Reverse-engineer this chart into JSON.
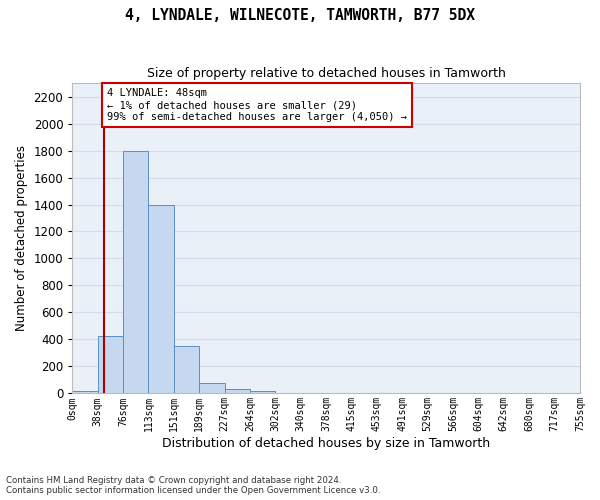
{
  "title": "4, LYNDALE, WILNECOTE, TAMWORTH, B77 5DX",
  "subtitle": "Size of property relative to detached houses in Tamworth",
  "xlabel": "Distribution of detached houses by size in Tamworth",
  "ylabel": "Number of detached properties",
  "bar_color": "#c5d8f0",
  "bar_edge_color": "#5a8fc2",
  "background_color": "#eaf0f8",
  "grid_color": "#d0dce8",
  "bins": [
    "0sqm",
    "38sqm",
    "76sqm",
    "113sqm",
    "151sqm",
    "189sqm",
    "227sqm",
    "264sqm",
    "302sqm",
    "340sqm",
    "378sqm",
    "415sqm",
    "453sqm",
    "491sqm",
    "529sqm",
    "566sqm",
    "604sqm",
    "642sqm",
    "680sqm",
    "717sqm",
    "755sqm"
  ],
  "bar_heights": [
    20,
    425,
    1800,
    1400,
    350,
    80,
    35,
    20,
    0,
    0,
    0,
    0,
    0,
    0,
    0,
    0,
    0,
    0,
    0,
    0
  ],
  "ylim": [
    0,
    2300
  ],
  "yticks": [
    0,
    200,
    400,
    600,
    800,
    1000,
    1200,
    1400,
    1600,
    1800,
    2000,
    2200
  ],
  "property_sqm": 48,
  "annotation_line1": "4 LYNDALE: 48sqm",
  "annotation_line2": "← 1% of detached houses are smaller (29)",
  "annotation_line3": "99% of semi-detached houses are larger (4,050) →",
  "vline_color": "#aa0000",
  "annotation_box_facecolor": "white",
  "annotation_box_edgecolor": "#cc0000",
  "footer_line1": "Contains HM Land Registry data © Crown copyright and database right 2024.",
  "footer_line2": "Contains public sector information licensed under the Open Government Licence v3.0."
}
